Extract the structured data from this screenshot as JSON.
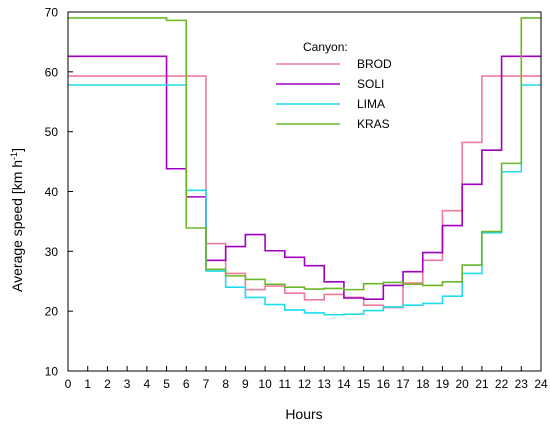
{
  "chart_data": {
    "type": "line",
    "step": true,
    "xlabel": "Hours",
    "ylabel_main": "Average speed [km h",
    "ylabel_sup": "-1",
    "ylabel_end": "]",
    "xlim": [
      0,
      24
    ],
    "ylim": [
      10,
      70
    ],
    "xticks": [
      "0",
      "1",
      "2",
      "3",
      "4",
      "5",
      "6",
      "7",
      "8",
      "9",
      "10",
      "11",
      "12",
      "13",
      "14",
      "15",
      "16",
      "17",
      "18",
      "19",
      "20",
      "21",
      "22",
      "23",
      "24"
    ],
    "yticks": [
      "10",
      "20",
      "30",
      "40",
      "50",
      "60",
      "70"
    ],
    "grid": false,
    "legend": {
      "title": "Canyon:",
      "placement": "top-right"
    },
    "series": [
      {
        "name": "BROD",
        "color": "#f07a9c",
        "values": [
          59.3,
          59.3,
          59.3,
          59.3,
          59.3,
          59.3,
          59.3,
          31.3,
          26.3,
          23.6,
          24.2,
          23.0,
          21.9,
          22.8,
          22.3,
          21.0,
          20.6,
          24.7,
          28.5,
          36.8,
          48.2,
          59.3,
          59.3,
          59.3
        ]
      },
      {
        "name": "SOLI",
        "color": "#a000c0",
        "values": [
          62.6,
          62.6,
          62.6,
          62.6,
          62.6,
          43.8,
          39.1,
          28.5,
          30.8,
          32.8,
          30.1,
          29.0,
          27.6,
          24.9,
          22.2,
          22.0,
          24.3,
          26.6,
          29.8,
          34.3,
          41.2,
          46.9,
          62.6,
          62.6
        ]
      },
      {
        "name": "LIMA",
        "color": "#20dcec",
        "values": [
          57.8,
          57.8,
          57.8,
          57.8,
          57.8,
          57.8,
          40.2,
          26.7,
          24.0,
          22.3,
          21.1,
          20.2,
          19.7,
          19.4,
          19.5,
          20.1,
          20.7,
          21.0,
          21.3,
          22.5,
          26.3,
          33.1,
          43.3,
          57.8
        ]
      },
      {
        "name": "KRAS",
        "color": "#6ab82a",
        "values": [
          69.0,
          69.0,
          69.0,
          69.0,
          69.0,
          68.6,
          33.9,
          27.0,
          25.9,
          25.3,
          24.5,
          24.0,
          23.7,
          23.8,
          23.6,
          24.6,
          24.8,
          24.5,
          24.3,
          24.9,
          27.7,
          33.3,
          44.7,
          69.0
        ]
      }
    ]
  }
}
